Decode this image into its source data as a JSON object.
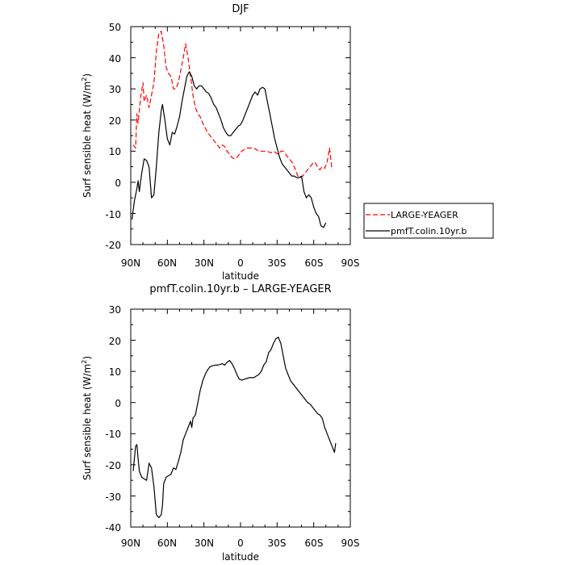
{
  "chart_data": [
    {
      "type": "line",
      "title": "DJF",
      "xlabel": "latitude",
      "ylabel": "Surf sensible heat (W/m",
      "ylabel_sup": "2",
      "ylabel_close": ")",
      "xlim": [
        90,
        -90
      ],
      "ylim": [
        -20,
        50
      ],
      "xticks": [
        90,
        60,
        30,
        0,
        -30,
        -60,
        -90
      ],
      "xtick_labels": [
        "90N",
        "60N",
        "30N",
        "0",
        "30S",
        "60S",
        "90S"
      ],
      "yticks": [
        -20,
        -10,
        0,
        10,
        20,
        30,
        40,
        50
      ],
      "ytick_labels": [
        "-20",
        "-10",
        "0",
        "10",
        "20",
        "30",
        "40",
        "50"
      ],
      "legend_position": "right",
      "series": [
        {
          "name": "LARGE-YEAGER",
          "color": "#ff0000",
          "dash": "dashed",
          "points": [
            [
              88,
              12
            ],
            [
              86,
              11
            ],
            [
              85,
              22
            ],
            [
              84,
              19
            ],
            [
              82,
              27
            ],
            [
              80,
              32
            ],
            [
              79,
              26
            ],
            [
              77,
              28
            ],
            [
              75,
              24
            ],
            [
              73,
              28
            ],
            [
              71,
              32
            ],
            [
              69,
              42
            ],
            [
              67,
              48
            ],
            [
              65,
              48.5
            ],
            [
              63,
              44
            ],
            [
              61,
              37
            ],
            [
              59,
              35
            ],
            [
              57,
              34
            ],
            [
              55,
              30
            ],
            [
              53,
              30
            ],
            [
              51,
              32
            ],
            [
              49,
              36
            ],
            [
              47,
              40
            ],
            [
              45,
              44.5
            ],
            [
              43,
              40
            ],
            [
              41,
              34
            ],
            [
              39,
              28
            ],
            [
              37,
              24
            ],
            [
              35,
              22
            ],
            [
              33,
              21
            ],
            [
              31,
              19
            ],
            [
              29,
              17.5
            ],
            [
              27,
              16
            ],
            [
              25,
              15
            ],
            [
              23,
              14
            ],
            [
              21,
              13
            ],
            [
              19,
              12
            ],
            [
              17,
              11
            ],
            [
              15,
              12
            ],
            [
              13,
              11.5
            ],
            [
              11,
              10
            ],
            [
              9,
              9
            ],
            [
              7,
              8
            ],
            [
              5,
              7.5
            ],
            [
              3,
              8
            ],
            [
              1,
              9
            ],
            [
              -1,
              10
            ],
            [
              -3,
              10.5
            ],
            [
              -5,
              11
            ],
            [
              -7,
              11
            ],
            [
              -9,
              11
            ],
            [
              -11,
              11
            ],
            [
              -13,
              10.5
            ],
            [
              -15,
              10
            ],
            [
              -17,
              10
            ],
            [
              -19,
              10
            ],
            [
              -21,
              10
            ],
            [
              -23,
              9.8
            ],
            [
              -25,
              9.5
            ],
            [
              -27,
              10
            ],
            [
              -29,
              9.5
            ],
            [
              -31,
              9
            ],
            [
              -33,
              10
            ],
            [
              -35,
              10
            ],
            [
              -37,
              9
            ],
            [
              -39,
              8
            ],
            [
              -41,
              7
            ],
            [
              -43,
              6
            ],
            [
              -45,
              4
            ],
            [
              -47,
              2
            ],
            [
              -49,
              1.5
            ],
            [
              -51,
              2
            ],
            [
              -53,
              3
            ],
            [
              -55,
              4
            ],
            [
              -57,
              5
            ],
            [
              -59,
              6
            ],
            [
              -61,
              6.5
            ],
            [
              -63,
              5
            ],
            [
              -65,
              4
            ],
            [
              -67,
              5
            ],
            [
              -69,
              4.5
            ],
            [
              -71,
              6.5
            ],
            [
              -73,
              11
            ],
            [
              -75,
              4
            ]
          ]
        },
        {
          "name": "pmfT.colin.10yr.b",
          "color": "#000000",
          "dash": "solid",
          "points": [
            [
              89,
              -12
            ],
            [
              87,
              -6
            ],
            [
              85,
              -2
            ],
            [
              84,
              0.5
            ],
            [
              83,
              -3
            ],
            [
              81,
              3
            ],
            [
              79,
              7.5
            ],
            [
              77,
              7
            ],
            [
              75,
              5
            ],
            [
              73,
              -5
            ],
            [
              71,
              -4
            ],
            [
              69,
              5
            ],
            [
              67,
              16
            ],
            [
              65,
              23
            ],
            [
              64,
              25
            ],
            [
              62,
              20
            ],
            [
              60,
              14
            ],
            [
              58,
              12
            ],
            [
              56,
              16
            ],
            [
              54,
              15.5
            ],
            [
              52,
              18
            ],
            [
              50,
              21
            ],
            [
              48,
              26
            ],
            [
              46,
              30
            ],
            [
              44,
              34
            ],
            [
              42,
              35.5
            ],
            [
              40,
              34
            ],
            [
              38,
              31
            ],
            [
              36,
              30
            ],
            [
              34,
              31
            ],
            [
              32,
              31
            ],
            [
              30,
              30
            ],
            [
              28,
              29
            ],
            [
              26,
              28.5
            ],
            [
              24,
              27
            ],
            [
              22,
              25
            ],
            [
              20,
              24
            ],
            [
              18,
              22
            ],
            [
              16,
              20
            ],
            [
              14,
              17.5
            ],
            [
              12,
              16
            ],
            [
              10,
              15
            ],
            [
              8,
              15
            ],
            [
              6,
              16
            ],
            [
              4,
              17
            ],
            [
              2,
              18
            ],
            [
              0,
              18.5
            ],
            [
              -2,
              20
            ],
            [
              -4,
              22
            ],
            [
              -6,
              24
            ],
            [
              -8,
              26
            ],
            [
              -10,
              28
            ],
            [
              -12,
              29
            ],
            [
              -14,
              28
            ],
            [
              -16,
              30
            ],
            [
              -18,
              30.5
            ],
            [
              -20,
              30
            ],
            [
              -22,
              26
            ],
            [
              -24,
              22
            ],
            [
              -26,
              18
            ],
            [
              -28,
              14
            ],
            [
              -30,
              11
            ],
            [
              -32,
              8
            ],
            [
              -34,
              6
            ],
            [
              -36,
              5
            ],
            [
              -38,
              4
            ],
            [
              -40,
              3
            ],
            [
              -42,
              2
            ],
            [
              -44,
              2
            ],
            [
              -46,
              1.5
            ],
            [
              -48,
              1.5
            ],
            [
              -50,
              2
            ],
            [
              -52,
              -3
            ],
            [
              -54,
              -5
            ],
            [
              -56,
              -4
            ],
            [
              -58,
              -5
            ],
            [
              -60,
              -8
            ],
            [
              -62,
              -10
            ],
            [
              -64,
              -11
            ],
            [
              -66,
              -14
            ],
            [
              -68,
              -14.5
            ],
            [
              -70,
              -13
            ]
          ]
        }
      ]
    },
    {
      "type": "line",
      "title": "pmfT.colin.10yr.b – LARGE-YEAGER",
      "xlabel": "latitude",
      "ylabel": "Surf sensible heat (W/m",
      "ylabel_sup": "2",
      "ylabel_close": ")",
      "xlim": [
        90,
        -90
      ],
      "ylim": [
        -40,
        30
      ],
      "xticks": [
        90,
        60,
        30,
        0,
        -30,
        -60,
        -90
      ],
      "xtick_labels": [
        "90N",
        "60N",
        "30N",
        "0",
        "30S",
        "60S",
        "90S"
      ],
      "yticks": [
        -40,
        -30,
        -20,
        -10,
        0,
        10,
        20,
        30
      ],
      "ytick_labels": [
        "-40",
        "-30",
        "-20",
        "-10",
        "0",
        "10",
        "20",
        "30"
      ],
      "series": [
        {
          "color": "#000000",
          "dash": "solid",
          "points": [
            [
              88,
              -22
            ],
            [
              86,
              -14
            ],
            [
              85,
              -13.5
            ],
            [
              84,
              -18
            ],
            [
              83,
              -22
            ],
            [
              81,
              -24
            ],
            [
              79,
              -24.5
            ],
            [
              77,
              -25
            ],
            [
              75,
              -19.5
            ],
            [
              73,
              -21
            ],
            [
              71,
              -27
            ],
            [
              69,
              -36
            ],
            [
              67,
              -37
            ],
            [
              65,
              -36
            ],
            [
              64,
              -33
            ],
            [
              63,
              -26
            ],
            [
              61,
              -24
            ],
            [
              59,
              -23.5
            ],
            [
              57,
              -23
            ],
            [
              55,
              -21
            ],
            [
              53,
              -21.5
            ],
            [
              51,
              -19
            ],
            [
              49,
              -16
            ],
            [
              47,
              -12
            ],
            [
              45,
              -10
            ],
            [
              43,
              -8
            ],
            [
              41,
              -6
            ],
            [
              40,
              -8
            ],
            [
              39,
              -5
            ],
            [
              37,
              -4
            ],
            [
              35,
              0
            ],
            [
              33,
              4
            ],
            [
              31,
              7
            ],
            [
              29,
              9
            ],
            [
              27,
              10.5
            ],
            [
              25,
              11.5
            ],
            [
              23,
              11.8
            ],
            [
              21,
              12
            ],
            [
              19,
              12
            ],
            [
              17,
              12.2
            ],
            [
              15,
              12.5
            ],
            [
              13,
              12
            ],
            [
              11,
              13
            ],
            [
              9,
              13.5
            ],
            [
              7,
              12.5
            ],
            [
              5,
              11
            ],
            [
              3,
              9
            ],
            [
              1,
              7.5
            ],
            [
              -1,
              7.2
            ],
            [
              -3,
              7.5
            ],
            [
              -5,
              7.7
            ],
            [
              -7,
              8
            ],
            [
              -9,
              8
            ],
            [
              -11,
              8
            ],
            [
              -13,
              8.5
            ],
            [
              -15,
              9
            ],
            [
              -17,
              10
            ],
            [
              -19,
              12
            ],
            [
              -21,
              13
            ],
            [
              -23,
              16
            ],
            [
              -25,
              17
            ],
            [
              -27,
              19
            ],
            [
              -29,
              20.5
            ],
            [
              -31,
              21
            ],
            [
              -33,
              19
            ],
            [
              -35,
              15
            ],
            [
              -37,
              11
            ],
            [
              -39,
              9
            ],
            [
              -41,
              7
            ],
            [
              -43,
              6
            ],
            [
              -45,
              5
            ],
            [
              -47,
              4
            ],
            [
              -49,
              3
            ],
            [
              -51,
              2
            ],
            [
              -53,
              1
            ],
            [
              -55,
              0
            ],
            [
              -57,
              -0.5
            ],
            [
              -59,
              -1.5
            ],
            [
              -61,
              -2.5
            ],
            [
              -63,
              -3.5
            ],
            [
              -65,
              -4
            ],
            [
              -67,
              -5
            ],
            [
              -69,
              -8
            ],
            [
              -71,
              -10
            ],
            [
              -73,
              -12
            ],
            [
              -75,
              -14
            ],
            [
              -77,
              -16
            ],
            [
              -78,
              -13
            ]
          ]
        }
      ]
    }
  ]
}
